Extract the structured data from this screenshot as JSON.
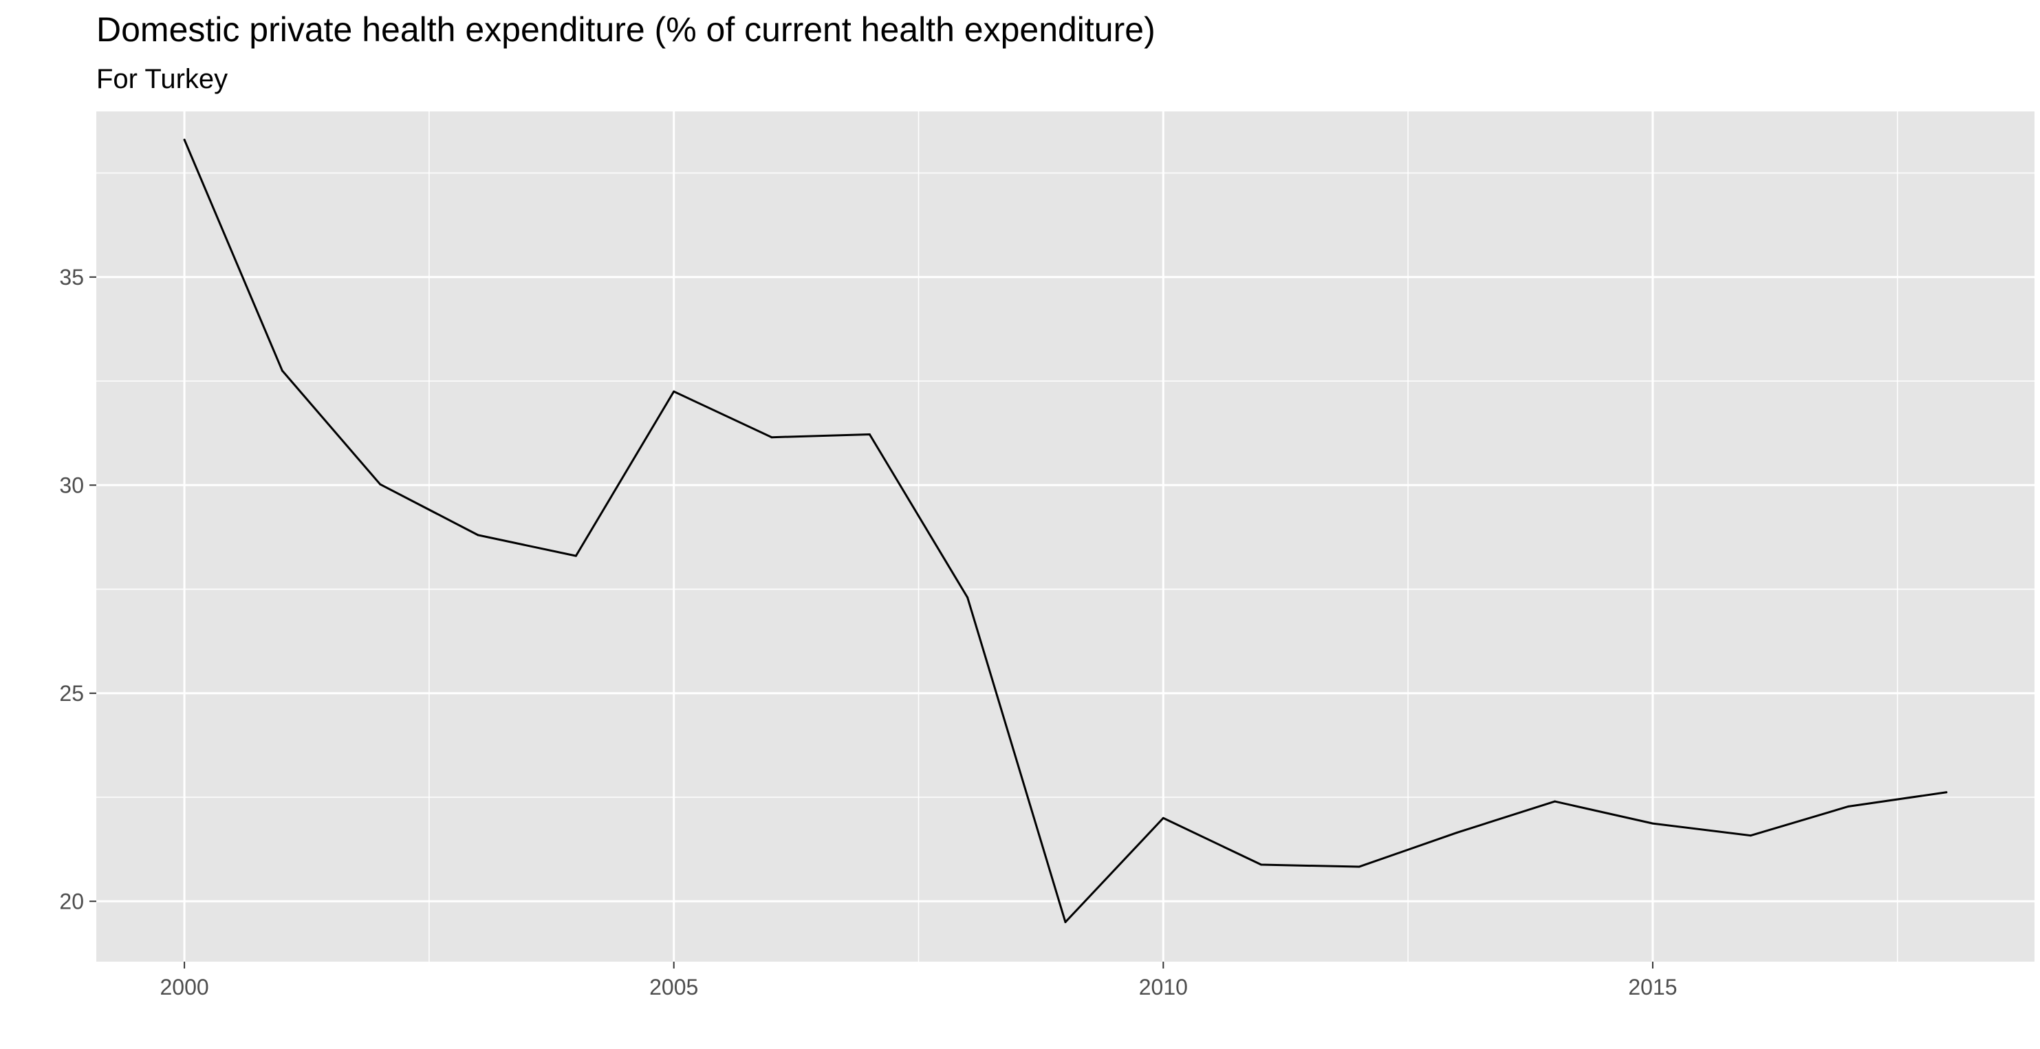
{
  "chart_data": {
    "type": "line",
    "title": "Domestic private health expenditure (% of current health expenditure)",
    "subtitle": "For Turkey",
    "xlabel": "",
    "ylabel": "",
    "x": [
      2000,
      2001,
      2002,
      2003,
      2004,
      2005,
      2006,
      2007,
      2008,
      2009,
      2010,
      2011,
      2012,
      2013,
      2014,
      2015,
      2016,
      2017,
      2018
    ],
    "series": [
      {
        "values": [
          38.3,
          32.75,
          30.02,
          28.8,
          28.3,
          32.25,
          31.15,
          31.22,
          27.3,
          19.5,
          22.0,
          20.88,
          20.83,
          21.65,
          22.4,
          21.87,
          21.58,
          22.28,
          22.62
        ]
      }
    ],
    "xlim": [
      1999.1,
      2018.9
    ],
    "ylim": [
      18.55,
      38.98
    ],
    "x_ticks": [
      "2000",
      "2005",
      "2010",
      "2015"
    ],
    "y_ticks": [
      "20",
      "25",
      "30",
      "35"
    ],
    "grid": true,
    "legend": "none",
    "colors": {
      "panel_background": "#e5e5e5",
      "grid_line": "#ffffff",
      "line": "#000000",
      "tick_text": "#4d4d4d"
    }
  }
}
